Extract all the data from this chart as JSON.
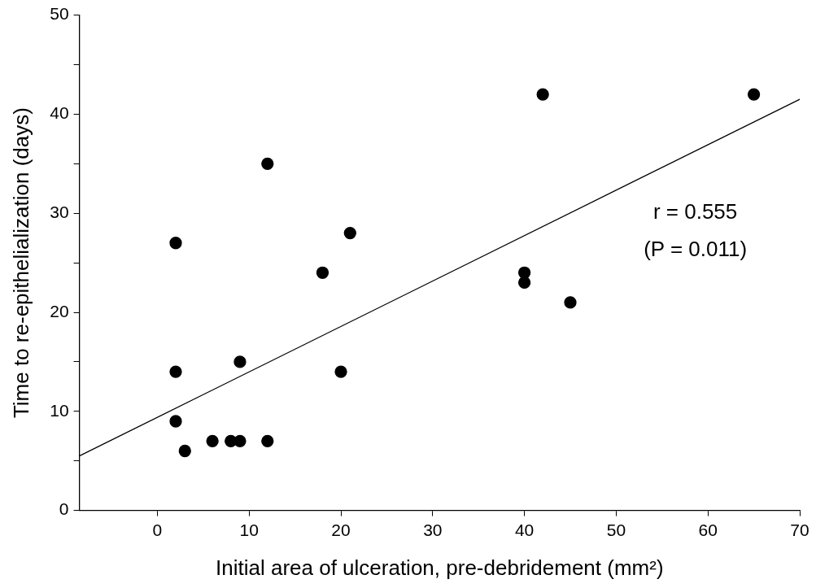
{
  "chart_data": {
    "type": "scatter",
    "xlabel": "Initial area of ulceration, pre-debridement (mm²)",
    "ylabel": "Time to re-epithelialization (days)",
    "xlim": [
      -8.5,
      70
    ],
    "xticks": [
      0,
      10,
      20,
      30,
      40,
      50,
      60,
      70
    ],
    "ylim": [
      0,
      50
    ],
    "yticks": [
      0,
      {
        "value": 5,
        "label": null
      },
      10,
      {
        "value": 15,
        "label": null
      },
      20,
      {
        "value": 25,
        "label": null
      },
      30,
      {
        "value": 35,
        "label": null
      },
      40,
      {
        "value": 45,
        "label": null
      },
      50
    ],
    "grid": false,
    "legend": false,
    "marker": "circle",
    "series": [
      {
        "color": "#000000",
        "x": [
          2,
          2,
          2,
          3,
          6,
          8,
          9,
          9,
          12,
          12,
          18,
          20,
          21,
          40,
          40,
          42,
          45,
          65
        ],
        "values": [
          27,
          14,
          9,
          6,
          7,
          7,
          7,
          15,
          35,
          7,
          24,
          14,
          28,
          24,
          23,
          42,
          21,
          42
        ]
      },
      {
        "type": "line",
        "color": "#000000",
        "line_style": "solid",
        "marker": "none",
        "x": [
          -8.5,
          70
        ],
        "values": [
          5.5,
          41.5
        ]
      }
    ],
    "annotations": [
      "r = 0.555",
      "(P = 0.011)"
    ]
  }
}
